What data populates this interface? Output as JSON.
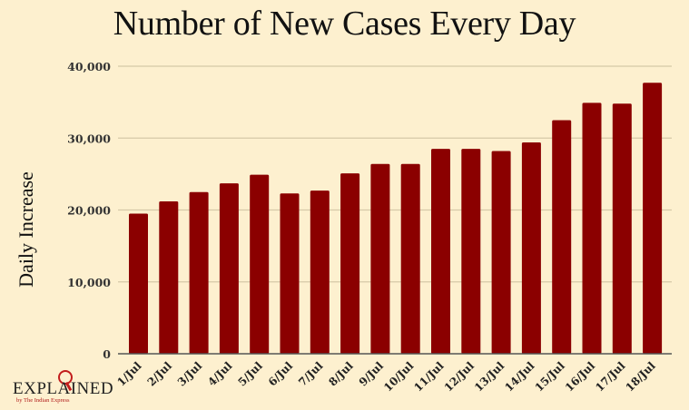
{
  "chart_data": {
    "type": "bar",
    "title": "Number of New Cases Every Day",
    "xlabel": "",
    "ylabel": "Daily Increase",
    "ylim": [
      0,
      40000
    ],
    "yticks": [
      0,
      10000,
      20000,
      30000,
      40000
    ],
    "ytick_labels": [
      "0",
      "10,000",
      "20,000",
      "30,000",
      "40,000"
    ],
    "grid": true,
    "categories": [
      "1/Jul",
      "2/Jul",
      "3/Jul",
      "4/Jul",
      "5/Jul",
      "6/Jul",
      "7/Jul",
      "8/Jul",
      "9/Jul",
      "10/Jul",
      "11/Jul",
      "12/Jul",
      "13/Jul",
      "14/Jul",
      "15/Jul",
      "16/Jul",
      "17/Jul",
      "18/Jul"
    ],
    "values": [
      19500,
      21200,
      22500,
      23700,
      24900,
      22300,
      22700,
      25100,
      26400,
      26400,
      28500,
      28500,
      28200,
      29400,
      32500,
      34900,
      34800,
      37700
    ],
    "colors": {
      "bar": "#8b0000",
      "background": "#fdf0cf",
      "grid": "#d6c9a8",
      "axis": "#555555"
    }
  },
  "logo": {
    "word": "EXPLAINED",
    "sub": "by The Indian Express"
  }
}
